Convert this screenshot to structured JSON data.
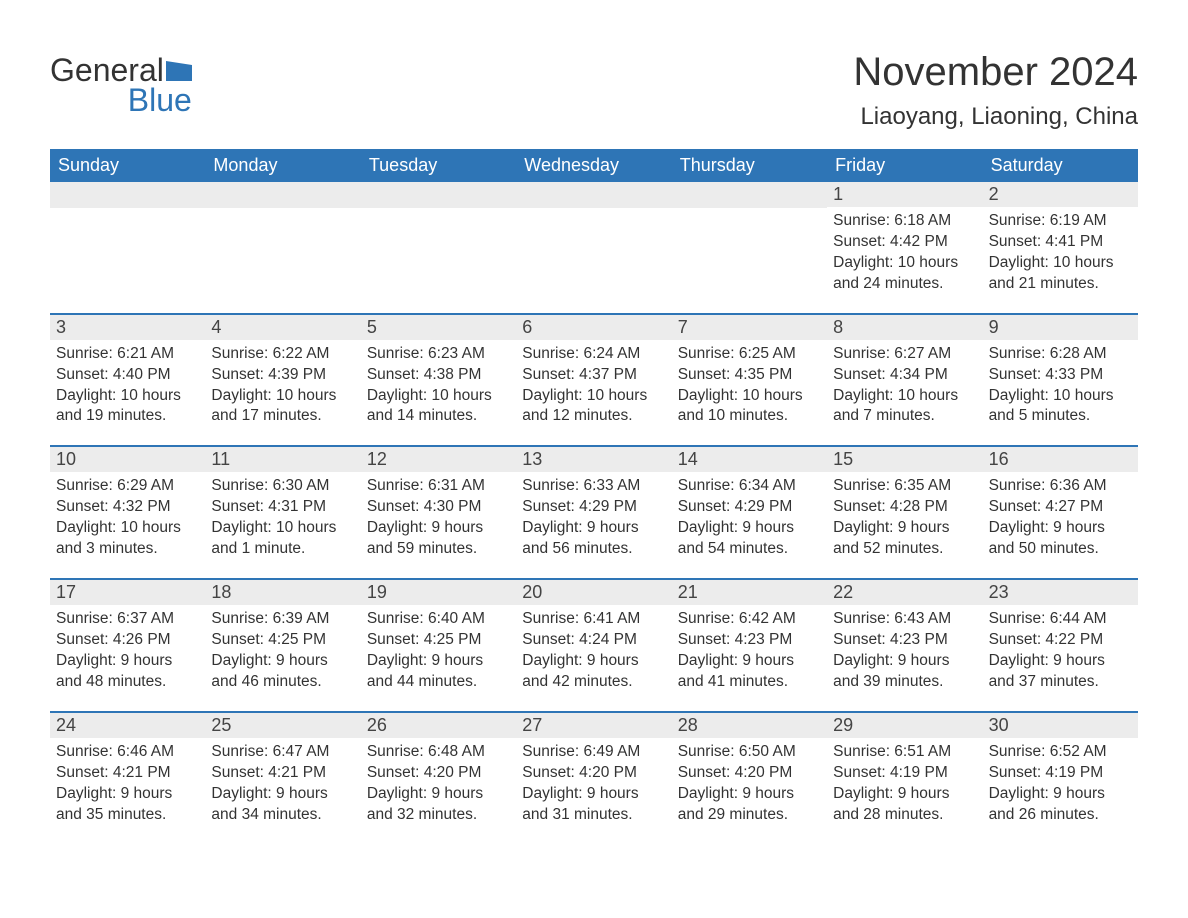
{
  "logo": {
    "line1": "General",
    "line2": "Blue",
    "icon_color": "#2e75b6"
  },
  "title": "November 2024",
  "location": "Liaoyang, Liaoning, China",
  "colors": {
    "header_bg": "#2e75b6",
    "header_text": "#ffffff",
    "day_strip_bg": "#ececec",
    "body_text": "#333333",
    "row_border": "#2e75b6"
  },
  "weekdays": [
    "Sunday",
    "Monday",
    "Tuesday",
    "Wednesday",
    "Thursday",
    "Friday",
    "Saturday"
  ],
  "weeks": [
    [
      {
        "empty": true
      },
      {
        "empty": true
      },
      {
        "empty": true
      },
      {
        "empty": true
      },
      {
        "empty": true
      },
      {
        "day": "1",
        "sunrise": "Sunrise: 6:18 AM",
        "sunset": "Sunset: 4:42 PM",
        "daylight1": "Daylight: 10 hours",
        "daylight2": "and 24 minutes."
      },
      {
        "day": "2",
        "sunrise": "Sunrise: 6:19 AM",
        "sunset": "Sunset: 4:41 PM",
        "daylight1": "Daylight: 10 hours",
        "daylight2": "and 21 minutes."
      }
    ],
    [
      {
        "day": "3",
        "sunrise": "Sunrise: 6:21 AM",
        "sunset": "Sunset: 4:40 PM",
        "daylight1": "Daylight: 10 hours",
        "daylight2": "and 19 minutes."
      },
      {
        "day": "4",
        "sunrise": "Sunrise: 6:22 AM",
        "sunset": "Sunset: 4:39 PM",
        "daylight1": "Daylight: 10 hours",
        "daylight2": "and 17 minutes."
      },
      {
        "day": "5",
        "sunrise": "Sunrise: 6:23 AM",
        "sunset": "Sunset: 4:38 PM",
        "daylight1": "Daylight: 10 hours",
        "daylight2": "and 14 minutes."
      },
      {
        "day": "6",
        "sunrise": "Sunrise: 6:24 AM",
        "sunset": "Sunset: 4:37 PM",
        "daylight1": "Daylight: 10 hours",
        "daylight2": "and 12 minutes."
      },
      {
        "day": "7",
        "sunrise": "Sunrise: 6:25 AM",
        "sunset": "Sunset: 4:35 PM",
        "daylight1": "Daylight: 10 hours",
        "daylight2": "and 10 minutes."
      },
      {
        "day": "8",
        "sunrise": "Sunrise: 6:27 AM",
        "sunset": "Sunset: 4:34 PM",
        "daylight1": "Daylight: 10 hours",
        "daylight2": "and 7 minutes."
      },
      {
        "day": "9",
        "sunrise": "Sunrise: 6:28 AM",
        "sunset": "Sunset: 4:33 PM",
        "daylight1": "Daylight: 10 hours",
        "daylight2": "and 5 minutes."
      }
    ],
    [
      {
        "day": "10",
        "sunrise": "Sunrise: 6:29 AM",
        "sunset": "Sunset: 4:32 PM",
        "daylight1": "Daylight: 10 hours",
        "daylight2": "and 3 minutes."
      },
      {
        "day": "11",
        "sunrise": "Sunrise: 6:30 AM",
        "sunset": "Sunset: 4:31 PM",
        "daylight1": "Daylight: 10 hours",
        "daylight2": "and 1 minute."
      },
      {
        "day": "12",
        "sunrise": "Sunrise: 6:31 AM",
        "sunset": "Sunset: 4:30 PM",
        "daylight1": "Daylight: 9 hours",
        "daylight2": "and 59 minutes."
      },
      {
        "day": "13",
        "sunrise": "Sunrise: 6:33 AM",
        "sunset": "Sunset: 4:29 PM",
        "daylight1": "Daylight: 9 hours",
        "daylight2": "and 56 minutes."
      },
      {
        "day": "14",
        "sunrise": "Sunrise: 6:34 AM",
        "sunset": "Sunset: 4:29 PM",
        "daylight1": "Daylight: 9 hours",
        "daylight2": "and 54 minutes."
      },
      {
        "day": "15",
        "sunrise": "Sunrise: 6:35 AM",
        "sunset": "Sunset: 4:28 PM",
        "daylight1": "Daylight: 9 hours",
        "daylight2": "and 52 minutes."
      },
      {
        "day": "16",
        "sunrise": "Sunrise: 6:36 AM",
        "sunset": "Sunset: 4:27 PM",
        "daylight1": "Daylight: 9 hours",
        "daylight2": "and 50 minutes."
      }
    ],
    [
      {
        "day": "17",
        "sunrise": "Sunrise: 6:37 AM",
        "sunset": "Sunset: 4:26 PM",
        "daylight1": "Daylight: 9 hours",
        "daylight2": "and 48 minutes."
      },
      {
        "day": "18",
        "sunrise": "Sunrise: 6:39 AM",
        "sunset": "Sunset: 4:25 PM",
        "daylight1": "Daylight: 9 hours",
        "daylight2": "and 46 minutes."
      },
      {
        "day": "19",
        "sunrise": "Sunrise: 6:40 AM",
        "sunset": "Sunset: 4:25 PM",
        "daylight1": "Daylight: 9 hours",
        "daylight2": "and 44 minutes."
      },
      {
        "day": "20",
        "sunrise": "Sunrise: 6:41 AM",
        "sunset": "Sunset: 4:24 PM",
        "daylight1": "Daylight: 9 hours",
        "daylight2": "and 42 minutes."
      },
      {
        "day": "21",
        "sunrise": "Sunrise: 6:42 AM",
        "sunset": "Sunset: 4:23 PM",
        "daylight1": "Daylight: 9 hours",
        "daylight2": "and 41 minutes."
      },
      {
        "day": "22",
        "sunrise": "Sunrise: 6:43 AM",
        "sunset": "Sunset: 4:23 PM",
        "daylight1": "Daylight: 9 hours",
        "daylight2": "and 39 minutes."
      },
      {
        "day": "23",
        "sunrise": "Sunrise: 6:44 AM",
        "sunset": "Sunset: 4:22 PM",
        "daylight1": "Daylight: 9 hours",
        "daylight2": "and 37 minutes."
      }
    ],
    [
      {
        "day": "24",
        "sunrise": "Sunrise: 6:46 AM",
        "sunset": "Sunset: 4:21 PM",
        "daylight1": "Daylight: 9 hours",
        "daylight2": "and 35 minutes."
      },
      {
        "day": "25",
        "sunrise": "Sunrise: 6:47 AM",
        "sunset": "Sunset: 4:21 PM",
        "daylight1": "Daylight: 9 hours",
        "daylight2": "and 34 minutes."
      },
      {
        "day": "26",
        "sunrise": "Sunrise: 6:48 AM",
        "sunset": "Sunset: 4:20 PM",
        "daylight1": "Daylight: 9 hours",
        "daylight2": "and 32 minutes."
      },
      {
        "day": "27",
        "sunrise": "Sunrise: 6:49 AM",
        "sunset": "Sunset: 4:20 PM",
        "daylight1": "Daylight: 9 hours",
        "daylight2": "and 31 minutes."
      },
      {
        "day": "28",
        "sunrise": "Sunrise: 6:50 AM",
        "sunset": "Sunset: 4:20 PM",
        "daylight1": "Daylight: 9 hours",
        "daylight2": "and 29 minutes."
      },
      {
        "day": "29",
        "sunrise": "Sunrise: 6:51 AM",
        "sunset": "Sunset: 4:19 PM",
        "daylight1": "Daylight: 9 hours",
        "daylight2": "and 28 minutes."
      },
      {
        "day": "30",
        "sunrise": "Sunrise: 6:52 AM",
        "sunset": "Sunset: 4:19 PM",
        "daylight1": "Daylight: 9 hours",
        "daylight2": "and 26 minutes."
      }
    ]
  ]
}
